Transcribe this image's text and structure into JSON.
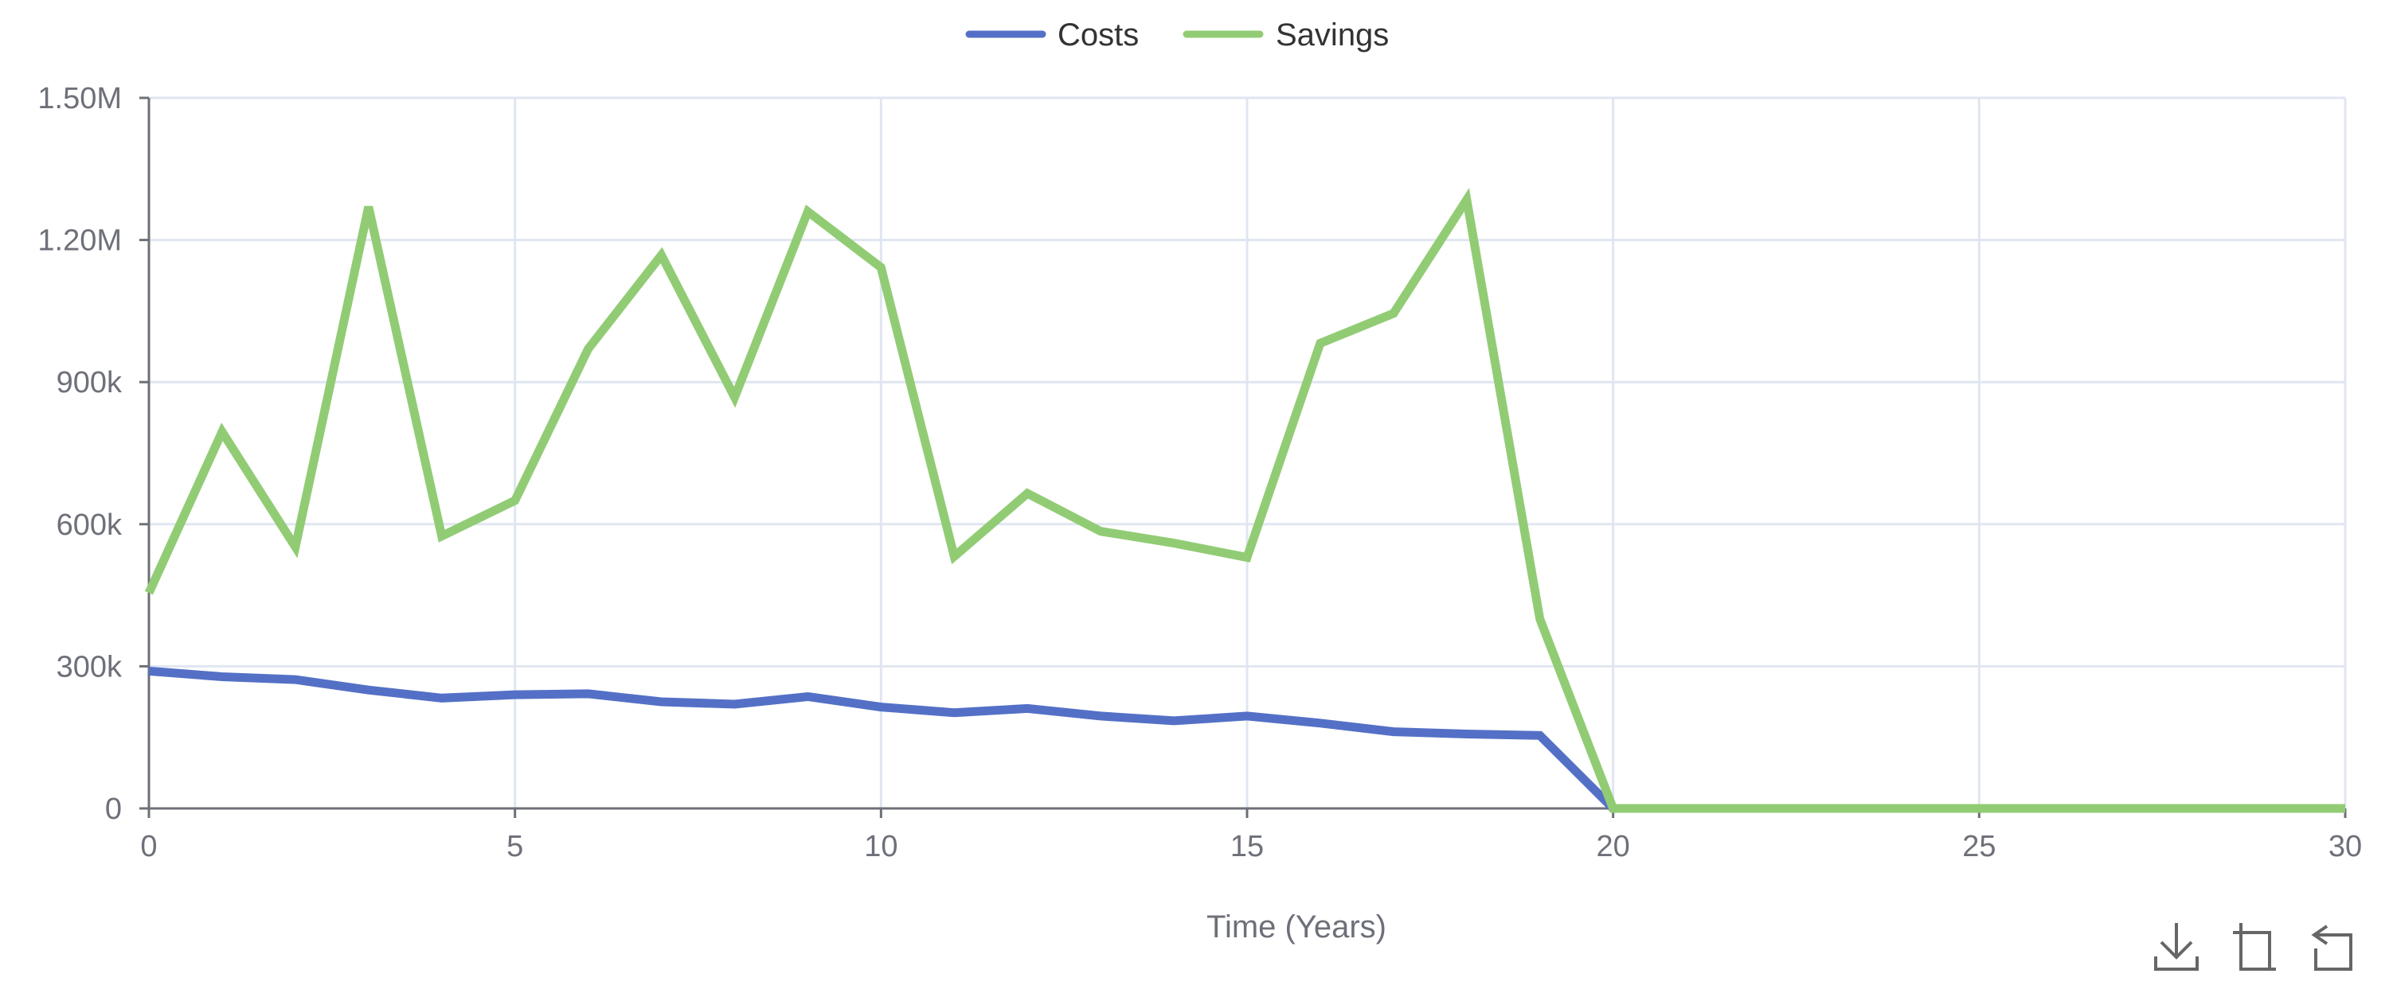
{
  "chart_data": {
    "type": "line",
    "xlabel": "Time (Years)",
    "ylabel": "",
    "xlim": [
      0,
      30
    ],
    "ylim": [
      0,
      1500000
    ],
    "x_ticks": [
      0,
      5,
      10,
      15,
      20,
      25,
      30
    ],
    "x_tick_labels": [
      "0",
      "5",
      "10",
      "15",
      "20",
      "25",
      "30"
    ],
    "y_ticks": [
      0,
      300000,
      600000,
      900000,
      1200000,
      1500000
    ],
    "y_tick_labels": [
      "0",
      "300k",
      "600k",
      "900k",
      "1.20M",
      "1.50M"
    ],
    "grid": true,
    "legend_position": "top-center",
    "x": [
      0,
      1,
      2,
      3,
      4,
      5,
      6,
      7,
      8,
      9,
      10,
      11,
      12,
      13,
      14,
      15,
      16,
      17,
      18,
      19,
      20,
      21,
      22,
      23,
      24,
      25,
      26,
      27,
      28,
      29,
      30
    ],
    "series": [
      {
        "name": "Costs",
        "color": "#5470c6",
        "values": [
          290000,
          278000,
          272000,
          250000,
          233000,
          240000,
          242000,
          225000,
          220000,
          236000,
          214000,
          202000,
          211000,
          195000,
          185000,
          195000,
          180000,
          162000,
          157000,
          154000,
          0,
          0,
          0,
          0,
          0,
          0,
          0,
          0,
          0,
          0,
          0
        ]
      },
      {
        "name": "Savings",
        "color": "#91cc75",
        "values": [
          455000,
          795000,
          552000,
          1270000,
          575000,
          650000,
          970000,
          1168000,
          868000,
          1260000,
          1142000,
          532000,
          665000,
          585000,
          560000,
          530000,
          982000,
          1045000,
          1285000,
          400000,
          0,
          0,
          0,
          0,
          0,
          0,
          0,
          0,
          0,
          0,
          0
        ]
      }
    ]
  },
  "toolbox": {
    "items": [
      {
        "name": "save-as-image",
        "icon": "download-icon"
      },
      {
        "name": "zoom",
        "icon": "crop-zoom-icon"
      },
      {
        "name": "restore",
        "icon": "restore-icon"
      }
    ]
  },
  "colors": {
    "grid": "#e0e6f1",
    "axis": "#6e7079"
  }
}
